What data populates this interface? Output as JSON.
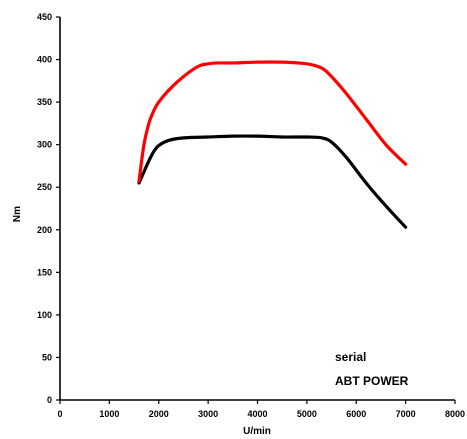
{
  "chart_data": {
    "type": "line",
    "xlabel": "U/min",
    "ylabel": "Nm",
    "xlim": [
      0,
      8000
    ],
    "ylim": [
      0,
      450
    ],
    "xticks": [
      0,
      1000,
      2000,
      3000,
      4000,
      5000,
      6000,
      7000,
      8000
    ],
    "yticks": [
      0,
      50,
      100,
      150,
      200,
      250,
      300,
      350,
      400,
      450
    ],
    "grid": false,
    "legend_position": "bottom-right",
    "legend_lines": [
      "serial",
      "ABT POWER"
    ],
    "series": [
      {
        "name": "serial",
        "color": "#000000",
        "x": [
          1600,
          1700,
          1800,
          1900,
          2000,
          2200,
          2500,
          3000,
          3500,
          4000,
          4500,
          5000,
          5300,
          5500,
          5800,
          6200,
          6600,
          7000
        ],
        "y": [
          255,
          268,
          281,
          292,
          299,
          305,
          308,
          309,
          310,
          310,
          309,
          309,
          308,
          303,
          285,
          255,
          228,
          203
        ]
      },
      {
        "name": "ABT POWER",
        "color": "#ff0000",
        "x": [
          1600,
          1700,
          1800,
          1900,
          2000,
          2200,
          2500,
          2800,
          3000,
          3200,
          3500,
          4000,
          4500,
          5000,
          5300,
          5500,
          5800,
          6200,
          6600,
          7000
        ],
        "y": [
          257,
          300,
          325,
          340,
          350,
          364,
          380,
          392,
          395,
          396,
          396,
          397,
          397,
          395,
          390,
          380,
          360,
          330,
          300,
          277
        ]
      }
    ]
  }
}
